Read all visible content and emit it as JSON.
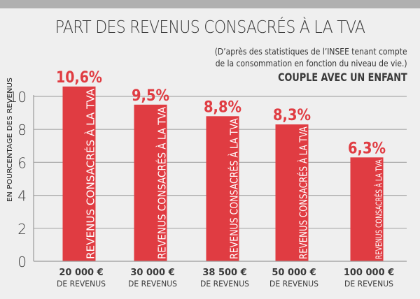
{
  "header": {
    "title": "PART DES REVENUS CONSACRÉS À LA TVA",
    "subtitle_lines": [
      "(D’après des statistiques de l’INSEE tenant compte",
      "de la consommation en fonction du niveau de vie.)"
    ],
    "category": "COUPLE AVEC UN ENFANT"
  },
  "colors": {
    "bar": "#e03c42",
    "value_label": "#e03c42",
    "grid": "#aaaaaa",
    "axis": "#9a9a9a",
    "text": "#3a3a3a",
    "bar_text": "#ffffff",
    "background": "#efefef",
    "top_band": "#b0b0b0"
  },
  "chart_data": {
    "type": "bar",
    "title": "PART DES REVENUS CONSACRÉS À LA TVA",
    "subtitle": "(D’après des statistiques de l’INSEE tenant compte de la consommation en fonction du niveau de vie.)",
    "annotation": "COUPLE AVEC UN ENFANT",
    "categories": [
      "20 000 €",
      "30 000 €",
      "38 500 €",
      "50 000 €",
      "100 000 €"
    ],
    "category_sublabel": "DE REVENUS",
    "values": [
      10.6,
      9.5,
      8.8,
      8.3,
      6.3
    ],
    "value_labels": [
      "10,6%",
      "9,5%",
      "8,8%",
      "8,3%",
      "6,3%"
    ],
    "bar_inner_label": "REVENUS CONSACRÉS À LA TVA",
    "xlabel": "",
    "ylabel": "EN POURCENTAGE DES REVENUS",
    "ylim": [
      0,
      10
    ],
    "yticks": [
      0,
      2,
      4,
      6,
      8,
      10
    ],
    "grid": true,
    "legend": "none"
  }
}
